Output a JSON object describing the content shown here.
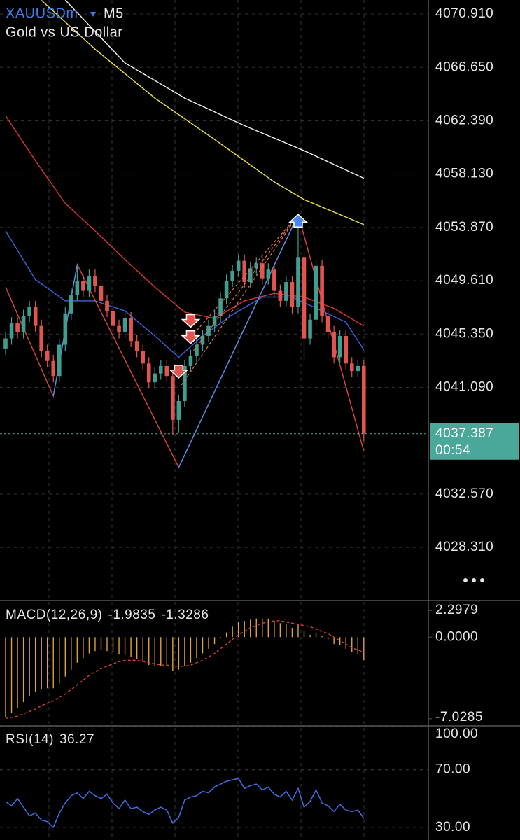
{
  "chart_data": [
    {
      "type": "candlestick",
      "symbol": "XAUUSDm",
      "timeframe": "M5",
      "subtitle": "Gold vs US Dollar",
      "open": [
        4044.2,
        4045.0,
        4046.2,
        4045.5,
        4046.8,
        4047.5,
        4046.0,
        4044.0,
        4043.2,
        4042.0,
        4044.5,
        4047.0,
        4048.5,
        4049.6,
        4048.8,
        4050.0,
        4049.2,
        4048.0,
        4047.2,
        4046.0,
        4045.5,
        4046.6,
        4044.8,
        4044.0,
        4043.0,
        4041.5,
        4042.2,
        4042.8,
        4042.0,
        4038.5,
        4040.0,
        4042.8,
        4043.6,
        4044.5,
        4045.2,
        4046.0,
        4046.8,
        4048.2,
        4049.6,
        4050.4,
        4051.2,
        4049.5,
        4050.6,
        4051.0,
        4049.8,
        4050.5,
        4048.8,
        4048.0,
        4049.5,
        4047.5,
        4051.5,
        4045.0,
        4046.5,
        4050.8,
        4046.8,
        4045.5,
        4043.5,
        4045.2,
        4043.0,
        4042.4,
        4042.8
      ],
      "high": [
        4045.5,
        4046.7,
        4046.7,
        4047.3,
        4048.0,
        4048.0,
        4046.5,
        4044.5,
        4043.7,
        4045.0,
        4047.5,
        4049.0,
        4050.8,
        4050.1,
        4050.5,
        4050.5,
        4049.7,
        4048.5,
        4047.7,
        4046.5,
        4047.1,
        4047.1,
        4045.3,
        4044.5,
        4043.5,
        4042.7,
        4043.3,
        4043.3,
        4042.5,
        4040.5,
        4043.3,
        4044.1,
        4045.0,
        4045.7,
        4046.5,
        4047.3,
        4048.7,
        4050.1,
        4050.9,
        4051.7,
        4051.7,
        4051.1,
        4051.5,
        4051.5,
        4051.0,
        4051.0,
        4049.3,
        4050.0,
        4050.0,
        4054.6,
        4052.0,
        4047.0,
        4051.3,
        4051.3,
        4047.3,
        4046.0,
        4045.7,
        4045.7,
        4043.5,
        4043.3,
        4043.3
      ],
      "low": [
        4043.7,
        4044.5,
        4045.0,
        4045.0,
        4046.3,
        4045.5,
        4043.5,
        4042.7,
        4041.5,
        4041.5,
        4044.0,
        4046.5,
        4048.0,
        4048.3,
        4048.3,
        4048.7,
        4047.5,
        4046.7,
        4045.5,
        4045.0,
        4045.0,
        4044.3,
        4043.5,
        4042.5,
        4041.0,
        4041.0,
        4041.7,
        4041.5,
        4037.3,
        4037.5,
        4039.5,
        4042.3,
        4043.1,
        4044.0,
        4044.7,
        4045.5,
        4046.3,
        4047.7,
        4049.1,
        4049.9,
        4049.0,
        4049.0,
        4050.1,
        4049.3,
        4049.3,
        4048.3,
        4047.5,
        4047.5,
        4047.0,
        4047.0,
        4043.2,
        4044.5,
        4046.0,
        4046.3,
        4045.0,
        4043.0,
        4043.0,
        4042.5,
        4041.9,
        4041.9,
        4036.8
      ],
      "close": [
        4045.0,
        4046.2,
        4045.5,
        4046.8,
        4047.5,
        4046.0,
        4044.0,
        4043.2,
        4042.0,
        4044.5,
        4047.0,
        4048.5,
        4049.6,
        4048.8,
        4050.0,
        4049.2,
        4048.0,
        4047.2,
        4046.0,
        4045.5,
        4046.6,
        4044.8,
        4044.0,
        4043.0,
        4041.5,
        4042.2,
        4042.8,
        4042.0,
        4038.5,
        4040.0,
        4042.8,
        4043.6,
        4044.5,
        4045.2,
        4046.0,
        4046.8,
        4048.2,
        4049.6,
        4050.4,
        4051.2,
        4049.5,
        4050.6,
        4051.0,
        4049.8,
        4050.5,
        4048.8,
        4048.0,
        4049.5,
        4047.5,
        4051.5,
        4045.0,
        4046.5,
        4050.8,
        4046.8,
        4045.5,
        4043.5,
        4045.2,
        4043.0,
        4042.4,
        4042.8,
        4037.4
      ],
      "up_color": "#3f9e8f",
      "down_color": "#e2554f",
      "ylim": [
        4024.07,
        4072.03
      ],
      "yticks": [
        {
          "value": 4070.91,
          "label": "4070.910"
        },
        {
          "value": 4066.65,
          "label": "4066.650"
        },
        {
          "value": 4062.39,
          "label": "4062.390"
        },
        {
          "value": 4058.13,
          "label": "4058.130"
        },
        {
          "value": 4053.87,
          "label": "4053.870"
        },
        {
          "value": 4049.61,
          "label": "4049.610"
        },
        {
          "value": 4045.35,
          "label": "4045.350"
        },
        {
          "value": 4041.09,
          "label": "4041.090"
        },
        {
          "value": 4032.57,
          "label": "4032.570"
        },
        {
          "value": 4028.31,
          "label": "4028.310"
        }
      ],
      "grid": true,
      "current_price": 4037.387,
      "countdown": "00:54",
      "price_color": "#4aa89a",
      "overlays": [
        {
          "color": "#f2f2f2",
          "x": [
            10,
            20,
            30,
            40,
            50,
            60
          ],
          "values": [
            4072.03,
            4067.0,
            4064.2,
            4062.0,
            4060.0,
            4057.8
          ]
        },
        {
          "color": "#f0e04a",
          "x": [
            6,
            15,
            25,
            35,
            45,
            50,
            60
          ],
          "values": [
            4072.0,
            4068.1,
            4064.2,
            4060.9,
            4057.5,
            4056.1,
            4054.1
          ]
        },
        {
          "color": "#d8372f",
          "x": [
            0,
            5,
            10,
            15,
            20,
            25,
            30,
            35,
            40,
            45,
            50,
            55,
            60
          ],
          "values": [
            4062.8,
            4059.2,
            4055.8,
            4053.6,
            4051.3,
            4049.1,
            4047.1,
            4046.6,
            4048.0,
            4048.6,
            4048.3,
            4047.4,
            4046.0
          ]
        },
        {
          "color": "#3a63e0",
          "x": [
            0,
            5,
            10,
            15,
            20,
            25,
            29,
            33,
            38,
            43,
            48,
            53,
            57,
            60
          ],
          "values": [
            4053.6,
            4049.7,
            4048.0,
            4048.0,
            4047.2,
            4045.2,
            4043.5,
            4045.2,
            4046.9,
            4048.3,
            4048.3,
            4047.2,
            4046.3,
            4044.1
          ]
        },
        {
          "color": "#e0453a",
          "x": [
            0,
            8,
            12,
            29,
            49,
            60
          ],
          "values": [
            4049.1,
            4040.4,
            4050.9,
            4034.7,
            4054.9,
            4036.0
          ]
        },
        {
          "color": "#4a8ff0",
          "x": [
            8,
            12,
            20,
            29,
            49
          ],
          "values": [
            4040.4,
            4050.9,
            null,
            4034.7,
            4054.9
          ]
        }
      ],
      "sell_signals": {
        "color": "#e2554f",
        "x": [
          29,
          31,
          31
        ],
        "values": [
          4041.85,
          4044.6,
          4045.9
        ]
      },
      "buy_signals": {
        "color": "#4a86e8",
        "x": [
          49
        ],
        "values": [
          4054.3
        ]
      }
    },
    {
      "type": "bar",
      "title": "MACD(12,26,9)",
      "macd_value": -1.9835,
      "signal_value": -1.3286,
      "color": "#d9a441",
      "values": [
        -6.9,
        -6.5,
        -6.1,
        -5.6,
        -5.1,
        -4.7,
        -4.5,
        -4.4,
        -4.4,
        -4.0,
        -3.4,
        -2.8,
        -2.2,
        -1.8,
        -1.4,
        -1.2,
        -1.1,
        -1.2,
        -1.3,
        -1.5,
        -1.5,
        -1.7,
        -1.9,
        -2.1,
        -2.4,
        -2.5,
        -2.5,
        -2.5,
        -2.9,
        -2.8,
        -2.5,
        -2.2,
        -1.8,
        -1.4,
        -1.0,
        -0.6,
        -0.1,
        0.4,
        0.9,
        1.3,
        1.4,
        1.5,
        1.6,
        1.6,
        1.6,
        1.4,
        1.2,
        1.1,
        0.8,
        1.1,
        0.5,
        0.2,
        0.4,
        0.1,
        -0.2,
        -0.6,
        -0.7,
        -1.0,
        -1.3,
        -1.5,
        -1.9835
      ],
      "signal": {
        "color": "#e0453a",
        "values": [
          -7.0,
          -6.9,
          -6.8,
          -6.6,
          -6.4,
          -6.2,
          -5.9,
          -5.7,
          -5.5,
          -5.2,
          -4.9,
          -4.5,
          -4.1,
          -3.7,
          -3.3,
          -3.0,
          -2.7,
          -2.5,
          -2.3,
          -2.1,
          -2.0,
          -2.0,
          -2.0,
          -2.1,
          -2.2,
          -2.3,
          -2.4,
          -2.4,
          -2.5,
          -2.5,
          -2.5,
          -2.4,
          -2.2,
          -2.0,
          -1.7,
          -1.4,
          -1.0,
          -0.6,
          -0.2,
          0.2,
          0.5,
          0.8,
          1.0,
          1.2,
          1.3,
          1.4,
          1.4,
          1.3,
          1.2,
          1.1,
          1.0,
          0.9,
          0.7,
          0.5,
          0.3,
          0.0,
          -0.3,
          -0.6,
          -0.9,
          -1.1,
          -1.3286
        ]
      },
      "ylim": [
        -7.64,
        3.15
      ],
      "yticks": [
        2.2979,
        {
          "value": 0,
          "label": "0.0000"
        },
        -7.0285
      ],
      "grid": false
    },
    {
      "type": "line",
      "title": "RSI(14)",
      "current_value": 36.27,
      "color": "#3d6fe0",
      "values": [
        48,
        45,
        50,
        44,
        38,
        40,
        35,
        34,
        30,
        40,
        47,
        52,
        54,
        50,
        55,
        52,
        50,
        53,
        47,
        43,
        49,
        43,
        44,
        41,
        39,
        42,
        44,
        42,
        33,
        37,
        49,
        51,
        52,
        55,
        54,
        58,
        60,
        62,
        63,
        64,
        57,
        59,
        60,
        56,
        58,
        53,
        51,
        55,
        49,
        57,
        44,
        48,
        56,
        47,
        45,
        41,
        46,
        42,
        41,
        42,
        36.27
      ],
      "ylim": [
        21.2,
        100.5
      ],
      "yticks": [
        {
          "value": 100,
          "label": "100.00"
        },
        {
          "value": 70,
          "label": "70.00"
        },
        {
          "value": 30,
          "label": "30.00"
        }
      ],
      "grid": true
    }
  ]
}
